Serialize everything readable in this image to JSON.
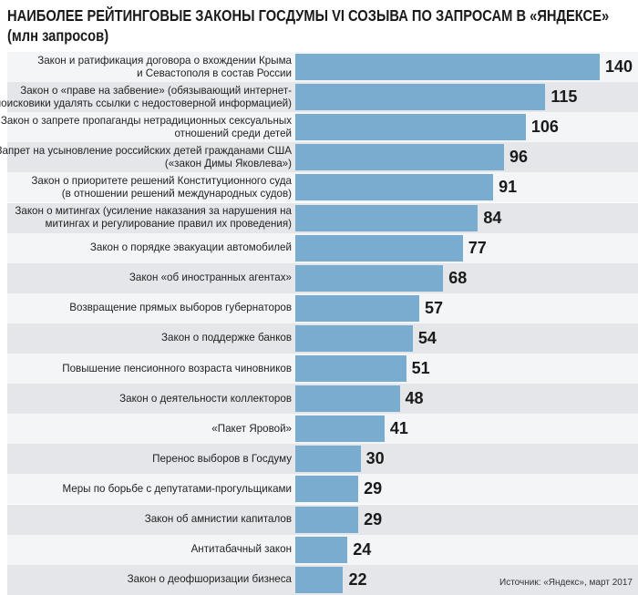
{
  "chart_data": {
    "type": "bar",
    "orientation": "horizontal",
    "title": "НАИБОЛЕЕ РЕЙТИНГОВЫЕ ЗАКОНЫ ГОСДУМЫ VI СОЗЫВА ПО ЗАПРОСАМ В «ЯНДЕКСЕ»",
    "subtitle": "(млн запросов)",
    "categories": [
      [
        "Закон и ратификация договора о вхождении Крыма",
        "и Севастополя в состав России"
      ],
      [
        "Закон о «праве на забвение» (обязывающий интернет-",
        "поисковики удалять ссылки с недостоверной информацией)"
      ],
      [
        "Закон о запрете пропаганды нетрадиционных сексуальных",
        "отношений среди детей"
      ],
      [
        "Запрет на усыновление российских детей гражданами США",
        "(«закон Димы Яковлева»)"
      ],
      [
        "Закон о приоритете решений Конституционного суда",
        "(в отношении решений международных судов)"
      ],
      [
        "Закон о митингах (усиление наказания за нарушения на",
        "митингах и регулирование правил их проведения)"
      ],
      [
        "Закон о порядке эвакуации автомобилей"
      ],
      [
        "Закон «об иностранных агентах»"
      ],
      [
        "Возвращение прямых выборов губернаторов"
      ],
      [
        "Закон о поддержке банков"
      ],
      [
        "Повышение пенсионного возраста чиновников"
      ],
      [
        "Закон о деятельности коллекторов"
      ],
      [
        "«Пакет Яровой»"
      ],
      [
        "Перенос выборов в Госдуму"
      ],
      [
        "Меры по борьбе с депутатами-прогульщиками"
      ],
      [
        "Закон об амнистии капиталов"
      ],
      [
        "Антитабачный закон"
      ],
      [
        "Закон о деофшоризации бизнеса"
      ]
    ],
    "values": [
      140,
      115,
      106,
      96,
      91,
      84,
      77,
      68,
      57,
      54,
      51,
      48,
      41,
      30,
      29,
      29,
      24,
      22
    ],
    "xlim": [
      0,
      140
    ],
    "grid": false,
    "colors": {
      "bar": "#7aaccf",
      "row_alt": "#e4e6ea",
      "row": "#f4f5f7"
    },
    "source": "Источник: «Яндекс», март 2017"
  }
}
